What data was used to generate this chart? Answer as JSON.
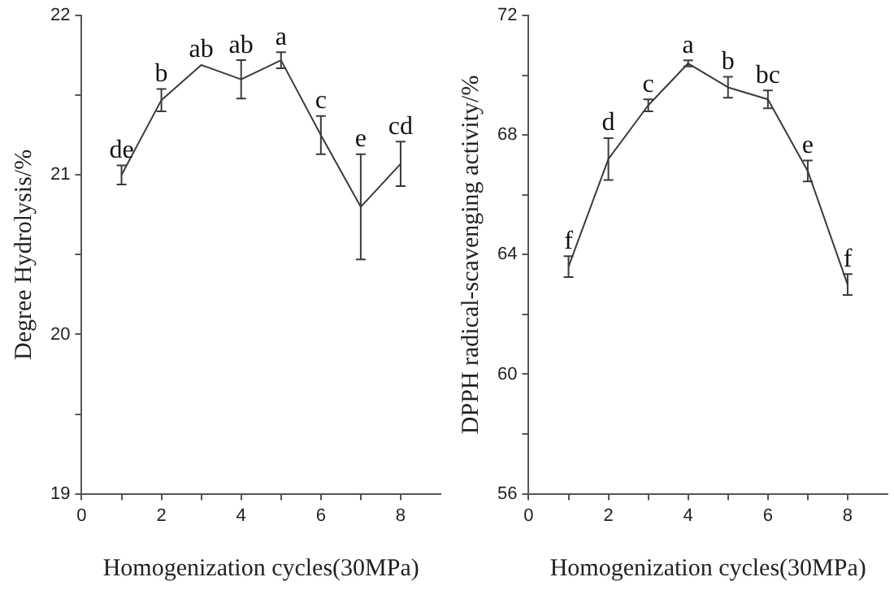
{
  "chart_data": [
    {
      "type": "line",
      "xlabel": "Homogenization cycles(30MPa)",
      "ylabel": "Degree Hydrolysis/%",
      "marker": "none",
      "x": [
        1,
        2,
        3,
        4,
        5,
        6,
        7,
        8
      ],
      "series": [
        {
          "color": "#3a3a3a",
          "values": [
            21.0,
            21.47,
            21.69,
            21.6,
            21.72,
            21.25,
            20.8,
            21.07
          ],
          "errors": [
            0.06,
            0.07,
            null,
            0.12,
            0.05,
            0.12,
            0.33,
            0.14
          ]
        }
      ],
      "xlim": [
        0,
        9
      ],
      "xticks": [
        0,
        {
          "value": 1,
          "label": null
        },
        2,
        {
          "value": 3,
          "label": null
        },
        4,
        {
          "value": 5,
          "label": null
        },
        6,
        {
          "value": 7,
          "label": null
        },
        8
      ],
      "ylim": [
        19,
        22
      ],
      "yticks": [
        19,
        {
          "value": 19.5,
          "label": null
        },
        20,
        {
          "value": 20.5,
          "label": null
        },
        21,
        {
          "value": 21.5,
          "label": null
        },
        22
      ],
      "annotations": [
        {
          "text": "de",
          "x": 1,
          "y": 21.06
        },
        {
          "text": "b",
          "x": 2,
          "y": 21.54
        },
        {
          "text": "ab",
          "x": 3,
          "y": 21.69
        },
        {
          "text": "ab",
          "x": 4,
          "y": 21.72
        },
        {
          "text": "a",
          "x": 5,
          "y": 21.77
        },
        {
          "text": "c",
          "x": 6,
          "y": 21.37
        },
        {
          "text": "e",
          "x": 7,
          "y": 21.13
        },
        {
          "text": "cd",
          "x": 8,
          "y": 21.21
        }
      ]
    },
    {
      "type": "line",
      "xlabel": "Homogenization cycles(30MPa)",
      "ylabel": "DPPH radical-scavenging activity/%",
      "marker": "none",
      "x": [
        1,
        2,
        3,
        4,
        5,
        6,
        7,
        8
      ],
      "series": [
        {
          "color": "#3a3a3a",
          "values": [
            63.6,
            67.2,
            69.0,
            70.4,
            69.6,
            69.2,
            66.8,
            63.0
          ],
          "errors": [
            0.35,
            0.7,
            0.2,
            0.1,
            0.35,
            0.3,
            0.35,
            0.35
          ]
        }
      ],
      "xlim": [
        0,
        9
      ],
      "xticks": [
        0,
        {
          "value": 1,
          "label": null
        },
        2,
        {
          "value": 3,
          "label": null
        },
        4,
        {
          "value": 5,
          "label": null
        },
        6,
        {
          "value": 7,
          "label": null
        },
        8
      ],
      "ylim": [
        56,
        72
      ],
      "yticks": [
        56,
        {
          "value": 58,
          "label": null
        },
        60,
        {
          "value": 62,
          "label": null
        },
        64,
        {
          "value": 66,
          "label": null
        },
        68,
        {
          "value": 70,
          "label": null
        },
        72
      ],
      "annotations": [
        {
          "text": "f",
          "x": 1,
          "y": 63.95
        },
        {
          "text": "d",
          "x": 2,
          "y": 67.9
        },
        {
          "text": "c",
          "x": 3,
          "y": 69.2
        },
        {
          "text": "a",
          "x": 4,
          "y": 70.5
        },
        {
          "text": "b",
          "x": 5,
          "y": 69.95
        },
        {
          "text": "bc",
          "x": 6,
          "y": 69.5
        },
        {
          "text": "e",
          "x": 7,
          "y": 67.15
        },
        {
          "text": "f",
          "x": 8,
          "y": 63.35
        }
      ]
    }
  ]
}
